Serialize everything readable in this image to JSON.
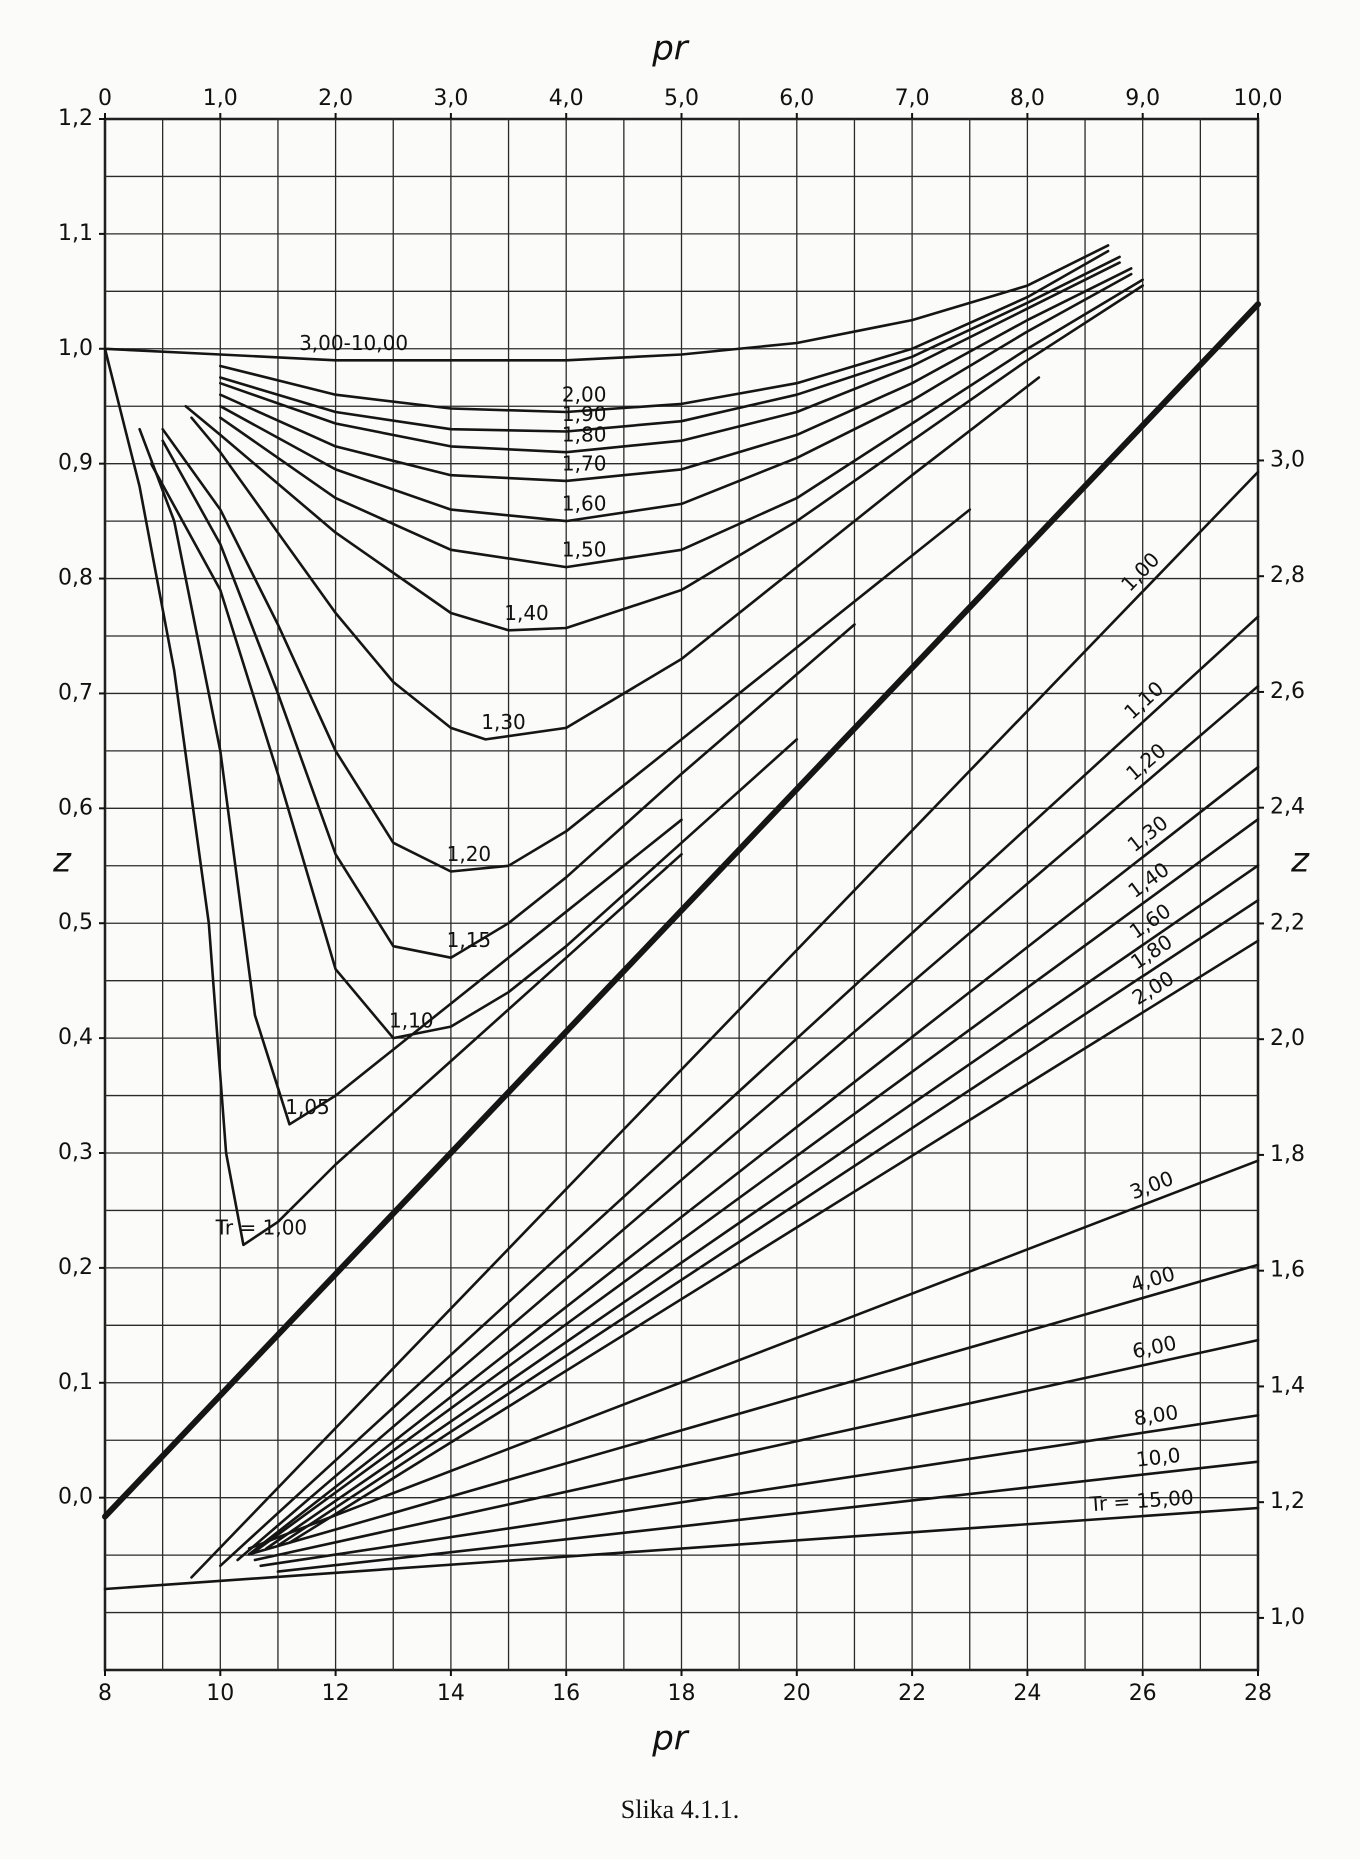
{
  "chart_data": [
    {
      "type": "line",
      "xlabel": "pr",
      "ylabel": "z",
      "caption": "Slika 4.1.1.",
      "x_axis": "top",
      "y_axis": "left",
      "xlim": [
        0,
        10
      ],
      "ylim": [
        -0.15,
        1.2
      ],
      "xticks": [
        0,
        {
          "value": 1,
          "label": "1,0"
        },
        {
          "value": 2,
          "label": "2,0"
        },
        {
          "value": 3,
          "label": "3,0"
        },
        {
          "value": 4,
          "label": "4,0"
        },
        {
          "value": 5,
          "label": "5,0"
        },
        {
          "value": 6,
          "label": "6,0"
        },
        {
          "value": 7,
          "label": "7,0"
        },
        {
          "value": 8,
          "label": "8,0"
        },
        {
          "value": 9,
          "label": "9,0"
        },
        {
          "value": 10,
          "label": "10,0"
        }
      ],
      "yticks": [
        {
          "value": 0,
          "label": "0,0"
        },
        {
          "value": 0.1,
          "label": "0,1"
        },
        {
          "value": 0.2,
          "label": "0,2"
        },
        {
          "value": 0.3,
          "label": "0,3"
        },
        {
          "value": 0.4,
          "label": "0,4"
        },
        {
          "value": 0.5,
          "label": "0,5"
        },
        {
          "value": 0.6,
          "label": "0,6"
        },
        {
          "value": 0.7,
          "label": "0,7"
        },
        {
          "value": 0.8,
          "label": "0,8"
        },
        {
          "value": 0.9,
          "label": "0,9"
        },
        {
          "value": 1.0,
          "label": "1,0"
        },
        {
          "value": 1.1,
          "label": "1,1"
        },
        {
          "value": 1.2,
          "label": "1,2"
        }
      ],
      "grid": true,
      "grid_subdivisions": 2,
      "color": "#151515",
      "series": [
        {
          "name": "3,00-10,00",
          "x": [
            0,
            1,
            2,
            3,
            4,
            5,
            6,
            7,
            8,
            8.7
          ],
          "values": [
            1.0,
            0.995,
            0.99,
            0.99,
            0.99,
            0.995,
            1.005,
            1.025,
            1.055,
            1.09
          ]
        },
        {
          "name": "2,00",
          "x": [
            1,
            2,
            3,
            4,
            5,
            6,
            7,
            8,
            8.7
          ],
          "values": [
            0.985,
            0.96,
            0.948,
            0.945,
            0.952,
            0.97,
            1.0,
            1.045,
            1.085
          ]
        },
        {
          "name": "1,90",
          "x": [
            1,
            2,
            3,
            4,
            5,
            6,
            7,
            8,
            8.8
          ],
          "values": [
            0.975,
            0.945,
            0.93,
            0.928,
            0.937,
            0.96,
            0.993,
            1.04,
            1.08
          ]
        },
        {
          "name": "1,80",
          "x": [
            1,
            2,
            3,
            4,
            5,
            6,
            7,
            8,
            8.8
          ],
          "values": [
            0.97,
            0.935,
            0.915,
            0.91,
            0.92,
            0.945,
            0.985,
            1.035,
            1.075
          ]
        },
        {
          "name": "1,70",
          "x": [
            1,
            2,
            3,
            4,
            5,
            6,
            7,
            8,
            8.9
          ],
          "values": [
            0.96,
            0.915,
            0.89,
            0.885,
            0.895,
            0.925,
            0.97,
            1.025,
            1.07
          ]
        },
        {
          "name": "1,60",
          "x": [
            1,
            2,
            3,
            4,
            5,
            6,
            7,
            8,
            8.9
          ],
          "values": [
            0.95,
            0.895,
            0.86,
            0.85,
            0.865,
            0.905,
            0.955,
            1.015,
            1.065
          ]
        },
        {
          "name": "1,50",
          "x": [
            1,
            2,
            3,
            4,
            5,
            6,
            7,
            8,
            9
          ],
          "values": [
            0.94,
            0.87,
            0.825,
            0.81,
            0.825,
            0.87,
            0.935,
            1.0,
            1.06
          ]
        },
        {
          "name": "1,40",
          "x": [
            0.7,
            1,
            2,
            3,
            3.5,
            4,
            5,
            6,
            7,
            8,
            9
          ],
          "values": [
            0.95,
            0.925,
            0.84,
            0.77,
            0.755,
            0.757,
            0.79,
            0.85,
            0.92,
            0.99,
            1.055
          ]
        },
        {
          "name": "1,30",
          "x": [
            0.75,
            1,
            1.5,
            2,
            2.5,
            3,
            3.3,
            4,
            5,
            6,
            7,
            8.1
          ],
          "values": [
            0.94,
            0.91,
            0.84,
            0.77,
            0.71,
            0.67,
            0.66,
            0.67,
            0.73,
            0.81,
            0.89,
            0.975
          ]
        },
        {
          "name": "1,20",
          "x": [
            0.5,
            1,
            1.5,
            2,
            2.5,
            3,
            3.5,
            4,
            5,
            6,
            7.5
          ],
          "values": [
            0.93,
            0.86,
            0.76,
            0.65,
            0.57,
            0.545,
            0.55,
            0.58,
            0.66,
            0.74,
            0.86
          ]
        },
        {
          "name": "1,15",
          "x": [
            0.5,
            1,
            1.5,
            2,
            2.5,
            3,
            3.5,
            4,
            5,
            6.5
          ],
          "values": [
            0.92,
            0.83,
            0.7,
            0.56,
            0.48,
            0.47,
            0.5,
            0.54,
            0.63,
            0.76
          ]
        },
        {
          "name": "1,10",
          "x": [
            0.4,
            1,
            1.5,
            2,
            2.5,
            3,
            3.5,
            4,
            5,
            6
          ],
          "values": [
            0.9,
            0.79,
            0.63,
            0.46,
            0.4,
            0.41,
            0.44,
            0.48,
            0.57,
            0.66
          ]
        },
        {
          "name": "1,05",
          "x": [
            0.3,
            0.6,
            1,
            1.3,
            1.6,
            2,
            3,
            4,
            5
          ],
          "values": [
            0.93,
            0.85,
            0.65,
            0.42,
            0.325,
            0.35,
            0.43,
            0.51,
            0.59
          ]
        },
        {
          "name": "Tr = 1,00",
          "x": [
            0,
            0.3,
            0.6,
            0.9,
            1.05,
            1.2,
            1.5,
            2,
            3,
            4,
            5
          ],
          "values": [
            1.0,
            0.88,
            0.72,
            0.5,
            0.3,
            0.22,
            0.24,
            0.29,
            0.38,
            0.47,
            0.56
          ]
        }
      ]
    },
    {
      "type": "line",
      "xlabel": "pr",
      "ylabel": "z",
      "x_axis": "bottom",
      "y_axis": "right",
      "xlim": [
        8,
        28
      ],
      "ylim": [
        0.91,
        3.59
      ],
      "xticks": [
        8,
        10,
        12,
        14,
        16,
        18,
        20,
        22,
        24,
        26,
        28
      ],
      "yticks": [
        {
          "value": 1.0,
          "label": "1,0"
        },
        {
          "value": 1.2,
          "label": "1,2"
        },
        {
          "value": 1.4,
          "label": "1,4"
        },
        {
          "value": 1.6,
          "label": "1,6"
        },
        {
          "value": 1.8,
          "label": "1,8"
        },
        {
          "value": 2.0,
          "label": "2,0"
        },
        {
          "value": 2.2,
          "label": "2,2"
        },
        {
          "value": 2.4,
          "label": "2,4"
        },
        {
          "value": 2.6,
          "label": "2,6"
        },
        {
          "value": 2.8,
          "label": "2,8"
        },
        {
          "value": 3.0,
          "label": "3,0"
        }
      ],
      "grid": false,
      "color": "#151515",
      "series": [
        {
          "x": [
            8,
            28
          ],
          "values": [
            1.175,
            3.27
          ],
          "width": 6
        },
        {
          "name": "1,00",
          "x": [
            9.5,
            28
          ],
          "values": [
            1.07,
            2.98
          ]
        },
        {
          "name": "1,10",
          "x": [
            10,
            28
          ],
          "values": [
            1.09,
            2.73
          ]
        },
        {
          "name": "1,20",
          "x": [
            10.3,
            28
          ],
          "values": [
            1.1,
            2.61
          ]
        },
        {
          "name": "1,30",
          "x": [
            10.5,
            28
          ],
          "values": [
            1.11,
            2.47
          ]
        },
        {
          "name": "1,40",
          "x": [
            10.6,
            28
          ],
          "values": [
            1.115,
            2.38
          ]
        },
        {
          "name": "1,60",
          "x": [
            10.8,
            28
          ],
          "values": [
            1.12,
            2.3
          ]
        },
        {
          "name": "1,80",
          "x": [
            11,
            28
          ],
          "values": [
            1.125,
            2.24
          ]
        },
        {
          "name": "2,00",
          "x": [
            11.2,
            28
          ],
          "values": [
            1.13,
            2.17
          ]
        },
        {
          "name": "3,00",
          "x": [
            10.5,
            28
          ],
          "values": [
            1.12,
            1.79
          ]
        },
        {
          "name": "4,00",
          "x": [
            10.5,
            28
          ],
          "values": [
            1.11,
            1.61
          ]
        },
        {
          "name": "6,00",
          "x": [
            10.6,
            28
          ],
          "values": [
            1.1,
            1.48
          ]
        },
        {
          "name": "8,00",
          "x": [
            10.7,
            28
          ],
          "values": [
            1.09,
            1.35
          ]
        },
        {
          "name": "10,0",
          "x": [
            11,
            28
          ],
          "values": [
            1.08,
            1.27
          ]
        },
        {
          "name": "Tr = 15,00",
          "x": [
            8,
            28
          ],
          "values": [
            1.05,
            1.19
          ]
        }
      ]
    }
  ]
}
